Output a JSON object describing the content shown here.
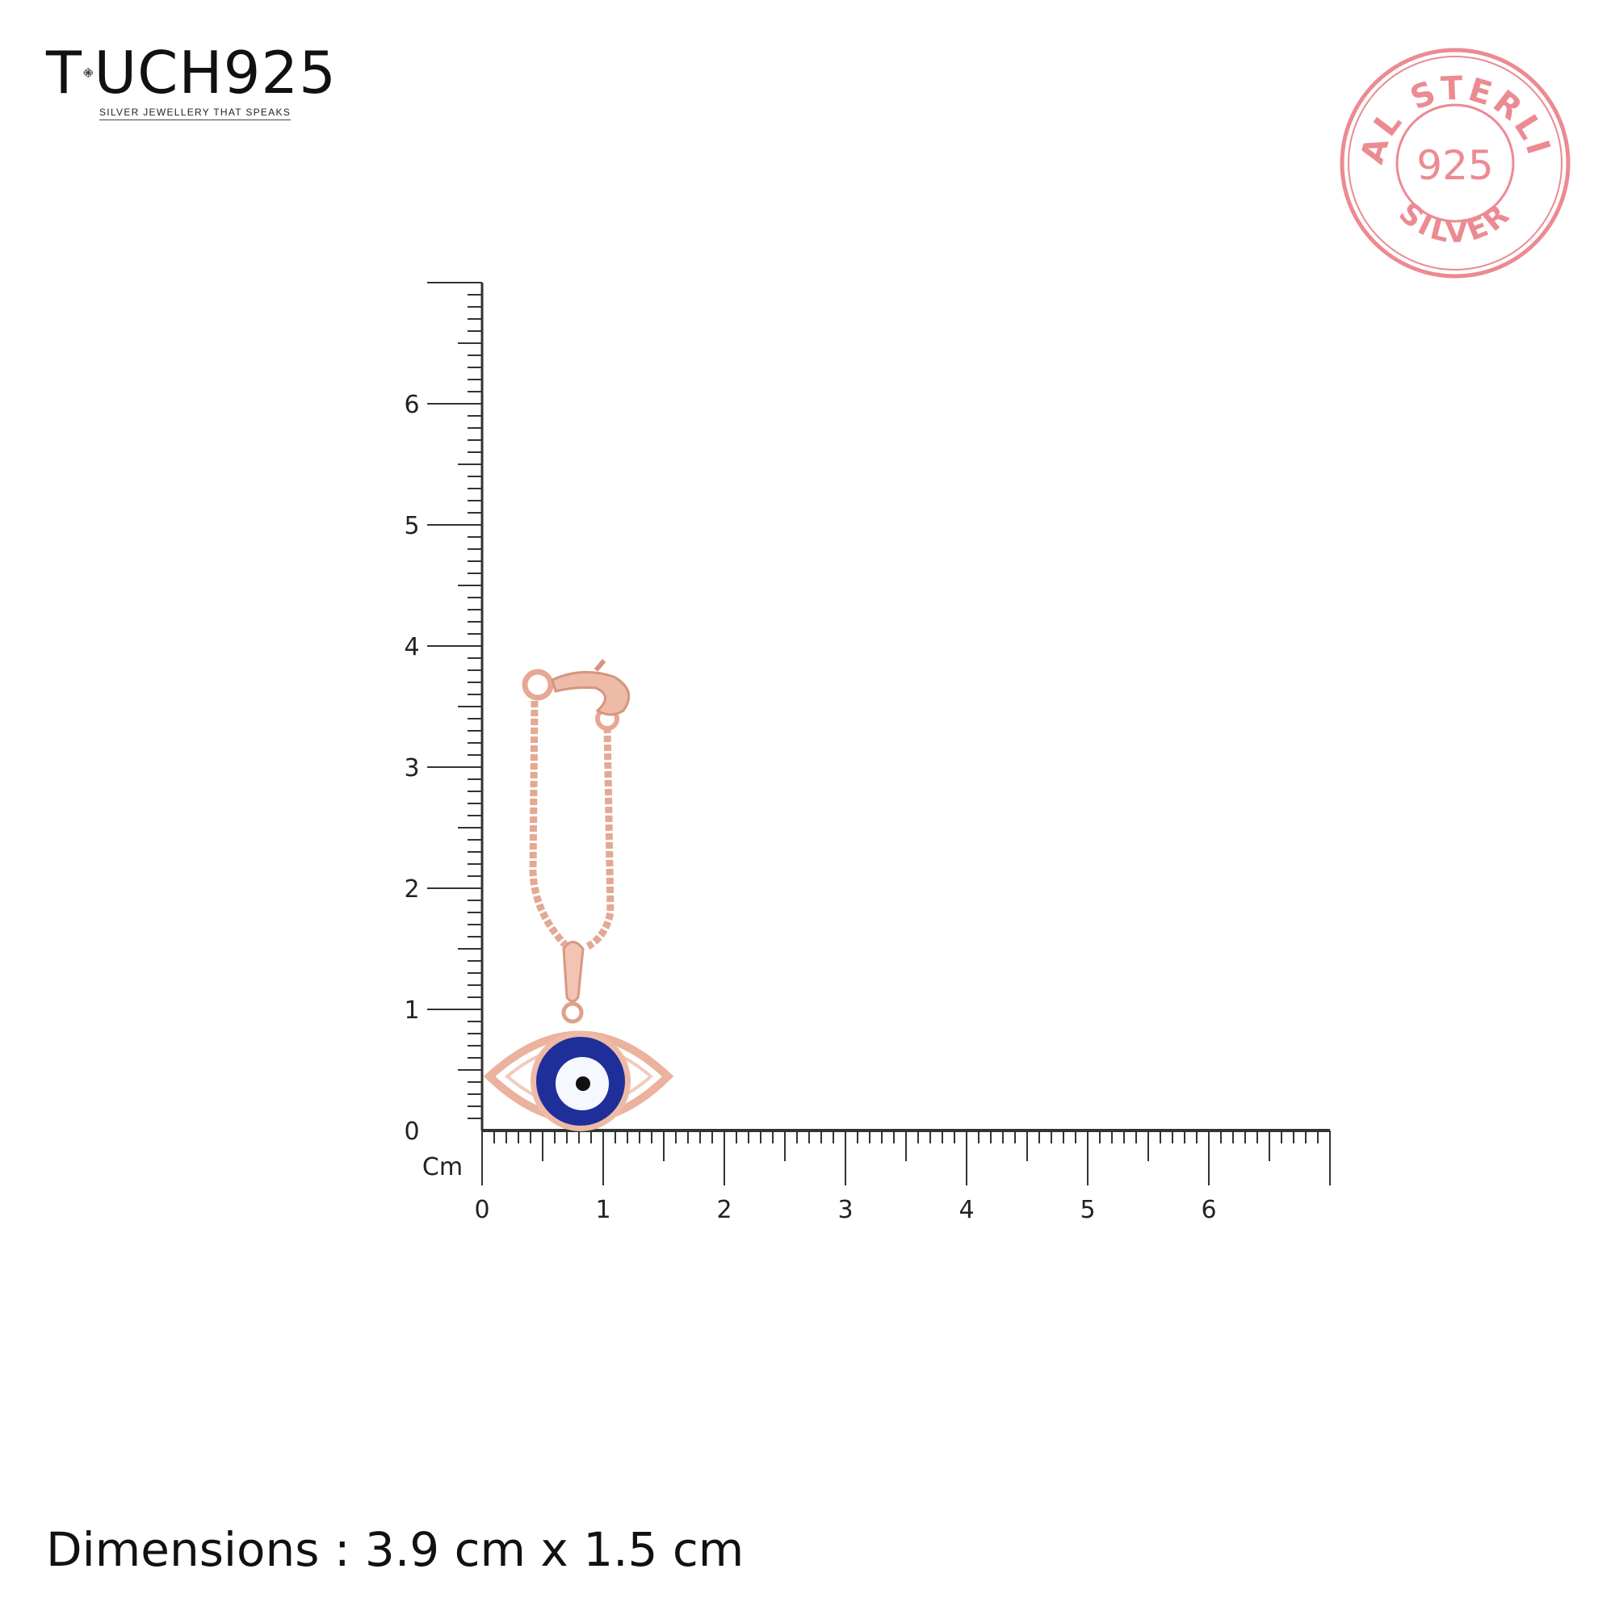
{
  "brand": {
    "logo_text_left": "T",
    "logo_text_right": "UCH925",
    "tagline": "SILVER JEWELLERY THAT SPEAKS"
  },
  "stamp": {
    "top_text": "REAL STERLING",
    "center_text": "925",
    "bottom_text": "SILVER",
    "color": "#ec8a92"
  },
  "ruler": {
    "unit_label": "Cm",
    "vertical_labels": [
      "0",
      "1",
      "2",
      "3",
      "4",
      "5",
      "6"
    ],
    "horizontal_labels": [
      "0",
      "1",
      "2",
      "3",
      "4",
      "5",
      "6"
    ],
    "length_cm": 7
  },
  "product": {
    "metal_color": "#e8b4a0",
    "enamel_color": "#1f2f9a"
  },
  "dimensions_text": "Dimensions : 3.9 cm x 1.5 cm"
}
